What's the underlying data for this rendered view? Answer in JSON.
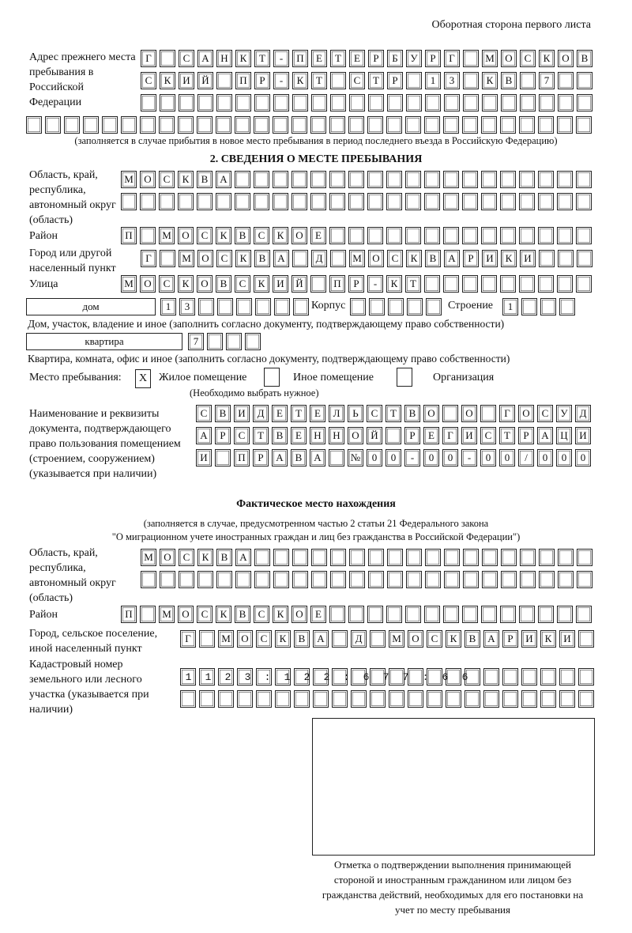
{
  "header": "Оборотная сторона первого листа",
  "prev_address": {
    "label": "Адрес прежнего места пребывания в Российской Федерации",
    "rows": [
      "Г САНКТ-ПЕТЕРБУРГ МОСКОВ",
      "СКИЙ ПР-КТ СТР 13 КВ 7",
      "",
      ""
    ],
    "note": "(заполняется в случае прибытия в новое место пребывания в период последнего въезда в Российскую Федерацию)"
  },
  "section2": {
    "title": "2. СВЕДЕНИЯ О МЕСТЕ ПРЕБЫВАНИЯ",
    "region_label": "Область, край, республика, автономный округ (область)",
    "region_rows": [
      "МОСКВА",
      ""
    ],
    "district_label": "Район",
    "district": "П МОСКВСКОЕ",
    "city_label": "Город или другой населенный пункт",
    "city": "Г МОСКВА Д МОСКВАРИКИ",
    "street_label": "Улица",
    "street": "МОСКОВСКИЙ ПР-КТ",
    "house_type": "дом",
    "house": "13",
    "korpus_label": "Корпус",
    "korpus": "",
    "stroenie_label": "Строение",
    "stroenie": "1",
    "house_note": "Дом, участок, владение и иное (заполнить согласно документу, подтверждающему право собственности)",
    "flat_type": "квартира",
    "flat": "7",
    "flat_note": "Квартира, комната, офис и иное (заполнить согласно документу, подтверждающему право собственности)",
    "place_label": "Место пребывания:",
    "place_options": [
      {
        "label": "Жилое помещение",
        "mark": "X"
      },
      {
        "label": "Иное помещение",
        "mark": ""
      },
      {
        "label": "Организация",
        "mark": ""
      }
    ],
    "place_note": "(Необходимо выбрать нужное)",
    "doc_label": "Наименование и реквизиты документа, подтверждающего право пользования помещением (строением, сооружением) (указывается при наличии)",
    "doc_rows": [
      "СВИДЕТЕЛЬСТВО О ГОСУД",
      "АРСТВЕННОЙ РЕГИСТРАЦИ",
      "И ПРАВА №00-00-00/000"
    ]
  },
  "actual": {
    "title": "Фактическое место нахождения",
    "note1": "(заполняется в случае, предусмотренном частью 2 статьи 21 Федерального закона",
    "note2": "\"О миграционном учете иностранных граждан и лиц без гражданства в Российской Федерации\")",
    "region_label": "Область, край, республика, автономный округ (область)",
    "region_rows": [
      "МОСКВА",
      ""
    ],
    "district_label": "Район",
    "district": "П МОСКВСКОЕ",
    "city_label": "Город, сельское поселение, иной населенный пункт",
    "city": "Г МОСКВА Д МОСКВАРИКИ",
    "cadastre_label": "Кадастровый номер земельного или лесного участка (указывается при наличии)",
    "cadastre_rows": [
      "1123:122:677:66",
      ""
    ]
  },
  "stamp_caption": "Отметка о подтверждении выполнения принимающей стороной и иностранным гражданином или лицом без гражданства действий, необходимых для его постановки на учет по месту пребывания"
}
